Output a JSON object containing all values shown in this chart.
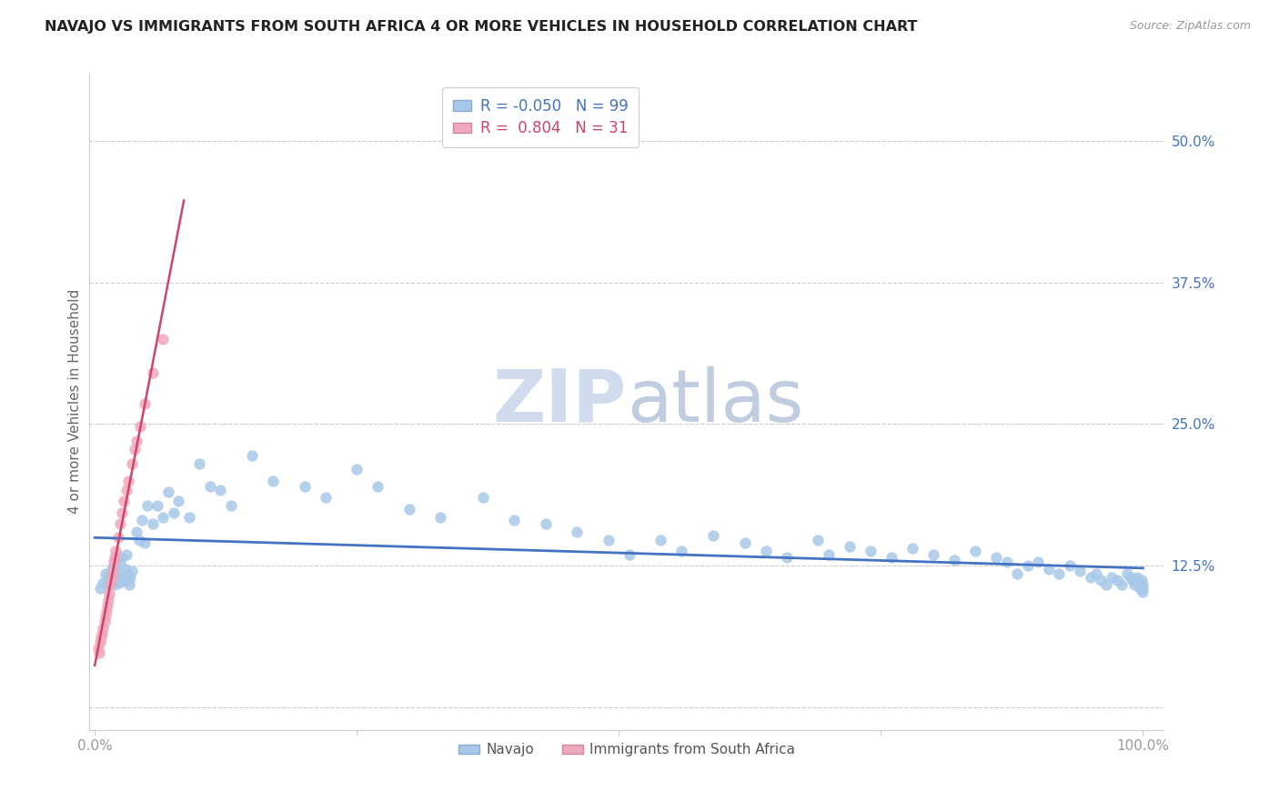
{
  "title": "NAVAJO VS IMMIGRANTS FROM SOUTH AFRICA 4 OR MORE VEHICLES IN HOUSEHOLD CORRELATION CHART",
  "source": "Source: ZipAtlas.com",
  "ylabel": "4 or more Vehicles in Household",
  "legend_label_1": "Navajo",
  "legend_label_2": "Immigrants from South Africa",
  "R1": -0.05,
  "N1": 99,
  "R2": 0.804,
  "N2": 31,
  "color1": "#a8c8e8",
  "color2": "#f0a8bc",
  "line_color1": "#4472c4",
  "line_color2": "#d04468",
  "background_color": "#ffffff",
  "grid_color": "#cccccc",
  "title_fontsize": 11.5,
  "axis_label_fontsize": 11,
  "tick_color_y": "#4472c4",
  "tick_color_x": "#999999",
  "watermark_zip": "#d0dced",
  "watermark_atlas": "#c0cce0",
  "watermark_fontsize": 58,
  "ytick_vals": [
    0.0,
    0.125,
    0.25,
    0.375,
    0.5
  ],
  "ytick_lbls": [
    "",
    "12.5%",
    "25.0%",
    "37.5%",
    "50.0%"
  ],
  "xtick_vals": [
    0.0,
    0.25,
    0.5,
    0.75,
    1.0
  ],
  "xtick_lbls": [
    "0.0%",
    "",
    "",
    "",
    "100.0%"
  ],
  "navajo_x": [
    0.005,
    0.008,
    0.01,
    0.012,
    0.013,
    0.015,
    0.016,
    0.017,
    0.018,
    0.019,
    0.02,
    0.021,
    0.022,
    0.023,
    0.024,
    0.025,
    0.026,
    0.027,
    0.028,
    0.029,
    0.03,
    0.031,
    0.032,
    0.033,
    0.034,
    0.035,
    0.04,
    0.042,
    0.045,
    0.048,
    0.05,
    0.055,
    0.06,
    0.065,
    0.07,
    0.075,
    0.08,
    0.09,
    0.1,
    0.11,
    0.12,
    0.13,
    0.15,
    0.17,
    0.2,
    0.22,
    0.25,
    0.27,
    0.3,
    0.33,
    0.37,
    0.4,
    0.43,
    0.46,
    0.49,
    0.51,
    0.54,
    0.56,
    0.59,
    0.62,
    0.64,
    0.66,
    0.69,
    0.7,
    0.72,
    0.74,
    0.76,
    0.78,
    0.8,
    0.82,
    0.84,
    0.86,
    0.87,
    0.88,
    0.89,
    0.9,
    0.91,
    0.92,
    0.93,
    0.94,
    0.95,
    0.955,
    0.96,
    0.965,
    0.97,
    0.975,
    0.98,
    0.985,
    0.988,
    0.99,
    0.992,
    0.994,
    0.996,
    0.997,
    0.998,
    0.999,
    1.0,
    1.0,
    1.0
  ],
  "navajo_y": [
    0.105,
    0.11,
    0.118,
    0.108,
    0.115,
    0.112,
    0.122,
    0.118,
    0.125,
    0.108,
    0.13,
    0.115,
    0.12,
    0.11,
    0.128,
    0.132,
    0.118,
    0.112,
    0.115,
    0.122,
    0.135,
    0.118,
    0.112,
    0.108,
    0.115,
    0.12,
    0.155,
    0.148,
    0.165,
    0.145,
    0.178,
    0.162,
    0.178,
    0.168,
    0.19,
    0.172,
    0.182,
    0.168,
    0.215,
    0.195,
    0.192,
    0.178,
    0.222,
    0.2,
    0.195,
    0.185,
    0.21,
    0.195,
    0.175,
    0.168,
    0.185,
    0.165,
    0.162,
    0.155,
    0.148,
    0.135,
    0.148,
    0.138,
    0.152,
    0.145,
    0.138,
    0.132,
    0.148,
    0.135,
    0.142,
    0.138,
    0.132,
    0.14,
    0.135,
    0.13,
    0.138,
    0.132,
    0.128,
    0.118,
    0.125,
    0.128,
    0.122,
    0.118,
    0.125,
    0.12,
    0.115,
    0.118,
    0.112,
    0.108,
    0.115,
    0.112,
    0.108,
    0.118,
    0.115,
    0.112,
    0.108,
    0.115,
    0.11,
    0.105,
    0.108,
    0.112,
    0.108,
    0.105,
    0.102
  ],
  "sa_x": [
    0.003,
    0.004,
    0.005,
    0.006,
    0.007,
    0.008,
    0.009,
    0.01,
    0.011,
    0.012,
    0.013,
    0.014,
    0.015,
    0.016,
    0.017,
    0.018,
    0.019,
    0.02,
    0.022,
    0.024,
    0.026,
    0.028,
    0.03,
    0.032,
    0.035,
    0.038,
    0.04,
    0.043,
    0.048,
    0.055,
    0.065
  ],
  "sa_y": [
    0.052,
    0.048,
    0.058,
    0.062,
    0.065,
    0.07,
    0.075,
    0.08,
    0.085,
    0.09,
    0.095,
    0.1,
    0.108,
    0.115,
    0.12,
    0.128,
    0.132,
    0.138,
    0.15,
    0.162,
    0.172,
    0.182,
    0.192,
    0.2,
    0.215,
    0.228,
    0.235,
    0.248,
    0.268,
    0.295,
    0.325
  ],
  "sa_line_x0": 0.0,
  "sa_line_x1": 0.085,
  "sa_line_y0": 0.04,
  "sa_line_y1": 0.5
}
